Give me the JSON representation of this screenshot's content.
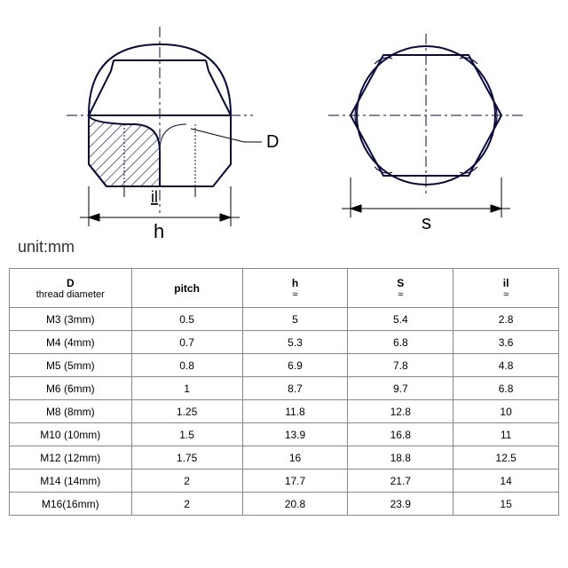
{
  "unit_label": "unit:mm",
  "diagram": {
    "label_D": "D",
    "label_il": "il",
    "label_h": "h",
    "label_s": "s",
    "stroke_color": "#0a0a3a",
    "hatch_color": "#0a0a3a",
    "centerline_color": "#0a0a3a",
    "text_color": "#000000"
  },
  "table": {
    "columns": [
      {
        "header": "D",
        "sub": "thread diameter"
      },
      {
        "header": "pitch",
        "sub": ""
      },
      {
        "header": "h",
        "sub": "≈"
      },
      {
        "header": "S",
        "sub": "≈"
      },
      {
        "header": "il",
        "sub": "≈"
      }
    ],
    "rows": [
      [
        "M3 (3mm)",
        "0.5",
        "5",
        "5.4",
        "2.8"
      ],
      [
        "M4 (4mm)",
        "0.7",
        "5.3",
        "6.8",
        "3.6"
      ],
      [
        "M5 (5mm)",
        "0.8",
        "6.9",
        "7.8",
        "4.8"
      ],
      [
        "M6 (6mm)",
        "1",
        "8.7",
        "9.7",
        "6.8"
      ],
      [
        "M8 (8mm)",
        "1.25",
        "11.8",
        "12.8",
        "10"
      ],
      [
        "M10 (10mm)",
        "1.5",
        "13.9",
        "16.8",
        "11"
      ],
      [
        "M12 (12mm)",
        "1.75",
        "16",
        "18.8",
        "12.5"
      ],
      [
        "M14 (14mm)",
        "2",
        "17.7",
        "21.7",
        "14"
      ],
      [
        "M16(16mm)",
        "2",
        "20.8",
        "23.9",
        "15"
      ]
    ]
  }
}
